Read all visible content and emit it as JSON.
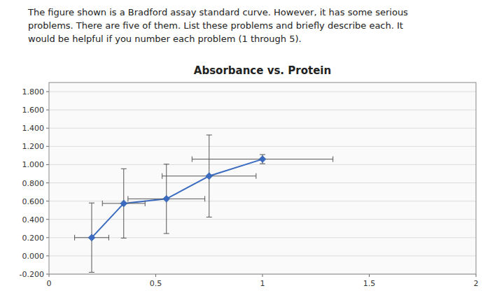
{
  "chart_data": {
    "type": "line",
    "title": "Absorbance vs. Protein",
    "annotation": "The figure shown is a Bradford assay standard curve. However, it has some serious\nproblems. There are five of them. List these problems and briefly describe each. It\nwould be helpful if you number each problem (1 through 5).",
    "x": [
      0.2,
      0.35,
      0.55,
      0.75,
      1.0
    ],
    "values": [
      0.2,
      0.575,
      0.625,
      0.875,
      1.06
    ],
    "x_err": [
      0.08,
      0.1,
      0.18,
      0.22,
      0.33
    ],
    "y_err": [
      0.38,
      0.38,
      0.38,
      0.45,
      0.05
    ],
    "color": "#3a6bbf",
    "marker": "diamond",
    "xlim": [
      0,
      2
    ],
    "xticks": [
      0,
      0.5,
      1,
      1.5,
      2
    ],
    "ylim": [
      -0.2,
      1.9
    ],
    "yticks": [
      {
        "value": -0.2,
        "label": "-0.200"
      },
      {
        "value": 0,
        "label": "0.000"
      },
      {
        "value": 0.2,
        "label": "0.200"
      },
      {
        "value": 0.4,
        "label": "0.400"
      },
      {
        "value": 0.6,
        "label": "0.600"
      },
      {
        "value": 0.8,
        "label": "0.800"
      },
      {
        "value": 1,
        "label": "1.000"
      },
      {
        "value": 1.2,
        "label": "1.200"
      },
      {
        "value": 1.4,
        "label": "1.400"
      },
      {
        "value": 1.6,
        "label": "1.600"
      },
      {
        "value": 1.8,
        "label": "1.800"
      }
    ],
    "grid": true
  }
}
